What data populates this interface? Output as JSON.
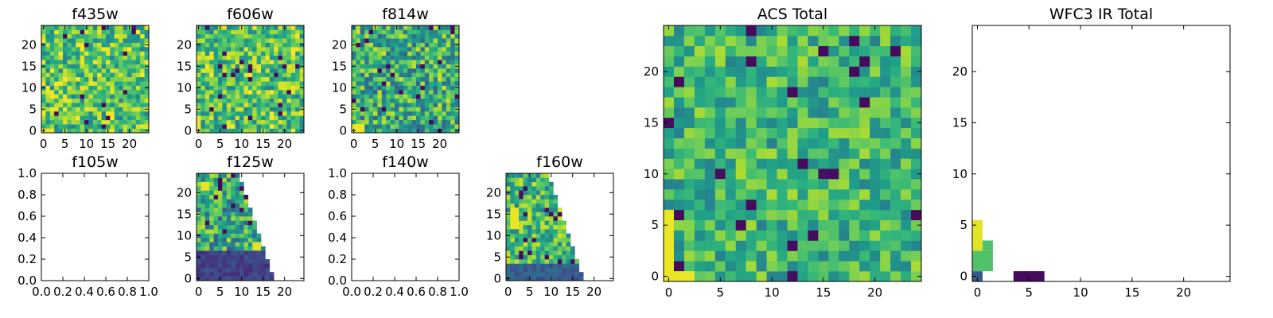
{
  "figure": {
    "description_colormap": "viridis"
  },
  "colors": {
    "frame": "#000000",
    "background": "#ffffff"
  },
  "chart_data": [
    {
      "id": "f435w",
      "type": "heatmap",
      "title": "f435w",
      "kind": "image",
      "xlim": [
        -0.5,
        24.5
      ],
      "ylim": [
        -0.5,
        24.5
      ],
      "xticks": [
        0,
        5,
        10,
        15,
        20
      ],
      "xticklabels": [
        "0",
        "5",
        "10",
        "15",
        "20"
      ],
      "yticks": [
        0,
        5,
        10,
        15,
        20
      ],
      "yticklabels": [
        "0",
        "5",
        "10",
        "15",
        "20"
      ],
      "grid_size": 25,
      "value_range": [
        0,
        1
      ],
      "seed": 11,
      "base": 0.72,
      "spread": 0.28,
      "highlights": [
        {
          "x": 0,
          "y": 0,
          "w": 3,
          "h": 1,
          "v": 0.98
        }
      ]
    },
    {
      "id": "f606w",
      "type": "heatmap",
      "title": "f606w",
      "kind": "image",
      "xlim": [
        -0.5,
        24.5
      ],
      "ylim": [
        -0.5,
        24.5
      ],
      "xticks": [
        0,
        5,
        10,
        15,
        20
      ],
      "xticklabels": [
        "0",
        "5",
        "10",
        "15",
        "20"
      ],
      "yticks": [
        0,
        5,
        10,
        15,
        20
      ],
      "yticklabels": [
        "0",
        "5",
        "10",
        "15",
        "20"
      ],
      "grid_size": 25,
      "value_range": [
        0,
        1
      ],
      "seed": 23,
      "base": 0.72,
      "spread": 0.28,
      "highlights": [
        {
          "x": 0,
          "y": 0,
          "w": 1,
          "h": 4,
          "v": 0.98
        }
      ]
    },
    {
      "id": "f814w",
      "type": "heatmap",
      "title": "f814w",
      "kind": "image",
      "xlim": [
        -0.5,
        24.5
      ],
      "ylim": [
        -0.5,
        24.5
      ],
      "xticks": [
        0,
        5,
        10,
        15,
        20
      ],
      "xticklabels": [
        "0",
        "5",
        "10",
        "15",
        "20"
      ],
      "yticks": [
        0,
        5,
        10,
        15,
        20
      ],
      "yticklabels": [
        "0",
        "5",
        "10",
        "15",
        "20"
      ],
      "grid_size": 25,
      "value_range": [
        0,
        1
      ],
      "seed": 37,
      "base": 0.62,
      "spread": 0.3,
      "highlights": [
        {
          "x": 0,
          "y": 0,
          "w": 3,
          "h": 2,
          "v": 0.98
        }
      ]
    },
    {
      "id": "f105w",
      "type": "heatmap",
      "title": "f105w",
      "kind": "empty",
      "xlim": [
        0,
        1
      ],
      "ylim": [
        0,
        1
      ],
      "xticks": [
        0,
        0.2,
        0.4,
        0.6,
        0.8,
        1
      ],
      "xticklabels": [
        "0.0",
        "0.2",
        "0.4",
        "0.6",
        "0.8",
        "1.0"
      ],
      "yticks": [
        0,
        0.2,
        0.4,
        0.6,
        0.8,
        1
      ],
      "yticklabels": [
        "0.0",
        "0.2",
        "0.4",
        "0.6",
        "0.8",
        "1.0"
      ]
    },
    {
      "id": "f125w",
      "type": "heatmap",
      "title": "f125w",
      "kind": "image",
      "xlim": [
        -0.5,
        24.5
      ],
      "ylim": [
        -0.5,
        24.5
      ],
      "xticks": [
        0,
        5,
        10,
        15,
        20
      ],
      "xticklabels": [
        "0",
        "5",
        "10",
        "15",
        "20"
      ],
      "yticks": [
        0,
        5,
        10,
        15,
        20
      ],
      "yticklabels": [
        "0",
        "5",
        "10",
        "15",
        "20"
      ],
      "grid_size": 25,
      "value_range": [
        0,
        1
      ],
      "seed": 51,
      "base": 0.6,
      "spread": 0.3,
      "mask": "wedge",
      "wedge": {
        "x_at_top": 10,
        "x_at_bottom": 18
      },
      "low_region": {
        "y_max": 6,
        "v": 0.12
      },
      "highlights": [
        {
          "x": 1,
          "y": 21,
          "w": 2,
          "h": 2,
          "v": 0.97
        },
        {
          "x": 13,
          "y": 7,
          "w": 2,
          "h": 2,
          "v": 0.96
        }
      ]
    },
    {
      "id": "f140w",
      "type": "heatmap",
      "title": "f140w",
      "kind": "empty",
      "xlim": [
        0,
        1
      ],
      "ylim": [
        0,
        1
      ],
      "xticks": [
        0,
        0.2,
        0.4,
        0.6,
        0.8,
        1
      ],
      "xticklabels": [
        "0.0",
        "0.2",
        "0.4",
        "0.6",
        "0.8",
        "1.0"
      ],
      "yticks": [
        0,
        0.2,
        0.4,
        0.6,
        0.8,
        1
      ],
      "yticklabels": [
        "0.0",
        "0.2",
        "0.4",
        "0.6",
        "0.8",
        "1.0"
      ]
    },
    {
      "id": "f160w",
      "type": "heatmap",
      "title": "f160w",
      "kind": "image",
      "xlim": [
        -0.5,
        24.5
      ],
      "ylim": [
        -0.5,
        24.5
      ],
      "xticks": [
        0,
        5,
        10,
        15,
        20
      ],
      "xticklabels": [
        "0",
        "5",
        "10",
        "15",
        "20"
      ],
      "yticks": [
        0,
        5,
        10,
        15,
        20
      ],
      "yticklabels": [
        "0",
        "5",
        "10",
        "15",
        "20"
      ],
      "grid_size": 25,
      "value_range": [
        0,
        1
      ],
      "seed": 67,
      "base": 0.68,
      "spread": 0.25,
      "mask": "wedge",
      "wedge": {
        "x_at_top": 10,
        "x_at_bottom": 18
      },
      "low_region": {
        "y_max": 3,
        "v": 0.22
      },
      "highlights": [
        {
          "x": 1,
          "y": 12,
          "w": 2,
          "h": 5,
          "v": 0.97
        },
        {
          "x": 3,
          "y": 19,
          "w": 1,
          "h": 2,
          "v": 0.05
        }
      ]
    },
    {
      "id": "acs_total",
      "type": "heatmap",
      "title": "ACS Total",
      "kind": "image",
      "xlim": [
        -0.5,
        24.5
      ],
      "ylim": [
        -0.5,
        24.5
      ],
      "xticks": [
        0,
        5,
        10,
        15,
        20
      ],
      "xticklabels": [
        "0",
        "5",
        "10",
        "15",
        "20"
      ],
      "yticks": [
        0,
        5,
        10,
        15,
        20
      ],
      "yticklabels": [
        "0",
        "5",
        "10",
        "15",
        "20"
      ],
      "grid_size": 25,
      "value_range": [
        0,
        1
      ],
      "seed": 89,
      "base": 0.66,
      "spread": 0.22,
      "highlights": [
        {
          "x": 0,
          "y": 0,
          "w": 1,
          "h": 7,
          "v": 0.97
        },
        {
          "x": 1,
          "y": 0,
          "w": 2,
          "h": 1,
          "v": 0.97
        },
        {
          "x": 12,
          "y": 0,
          "w": 1,
          "h": 1,
          "v": 0.04
        },
        {
          "x": 15,
          "y": 10,
          "w": 2,
          "h": 1,
          "v": 0.04
        },
        {
          "x": 5,
          "y": 10,
          "w": 1,
          "h": 1,
          "v": 0.04
        }
      ]
    },
    {
      "id": "wfc3_ir_total",
      "type": "heatmap",
      "title": "WFC3 IR Total",
      "kind": "sparse",
      "xlim": [
        -0.5,
        24.5
      ],
      "ylim": [
        -0.5,
        24.5
      ],
      "xticks": [
        0,
        5,
        10,
        15,
        20
      ],
      "xticklabels": [
        "0",
        "5",
        "10",
        "15",
        "20"
      ],
      "yticks": [
        0,
        5,
        10,
        15,
        20
      ],
      "yticklabels": [
        "0",
        "5",
        "10",
        "15",
        "20"
      ],
      "cells": [
        {
          "x": 0,
          "y": 0,
          "w": 1,
          "h": 1,
          "v": 0.28
        },
        {
          "x": 0,
          "y": 1,
          "w": 2,
          "h": 2,
          "v": 0.72
        },
        {
          "x": 1,
          "y": 3,
          "w": 1,
          "h": 1,
          "v": 0.72
        },
        {
          "x": 0,
          "y": 3,
          "w": 1,
          "h": 3,
          "v": 0.96
        },
        {
          "x": 4,
          "y": 0,
          "w": 3,
          "h": 1,
          "v": 0.03
        }
      ]
    }
  ]
}
